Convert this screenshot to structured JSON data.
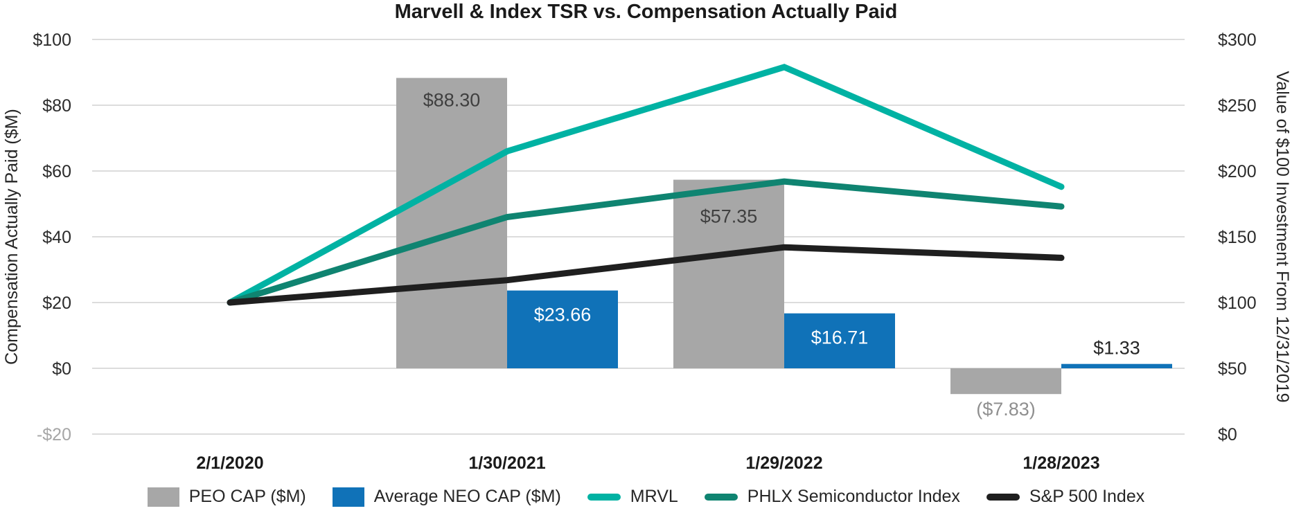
{
  "chart_data": {
    "type": "combo-bar-line",
    "title": "Marvell & Index TSR vs. Compensation Actually Paid",
    "categories": [
      "2/1/2020",
      "1/30/2021",
      "1/29/2022",
      "1/28/2023"
    ],
    "bar_series": [
      {
        "name": "PEO CAP ($M)",
        "color": "#a7a7a7",
        "label_color": "#3f3f3f",
        "negative_label_color": "#8f8f8f",
        "values": [
          null,
          88.3,
          57.35,
          -7.83
        ],
        "labels": [
          "",
          "$88.30",
          "$57.35",
          "($7.83)"
        ]
      },
      {
        "name": "Average NEO CAP ($M)",
        "color": "#1072b8",
        "label_color": "#ffffff",
        "small_label_color": "#262626",
        "values": [
          null,
          23.66,
          16.71,
          1.33
        ],
        "labels": [
          "",
          "$23.66",
          "$16.71",
          "$1.33"
        ]
      }
    ],
    "line_series": [
      {
        "name": "MRVL",
        "color": "#00b2a3",
        "values": [
          100,
          215,
          279,
          188
        ]
      },
      {
        "name": "PHLX Semiconductor Index",
        "color": "#0f8471",
        "values": [
          100,
          165,
          192,
          173
        ]
      },
      {
        "name": "S&P 500 Index",
        "color": "#1f1f1f",
        "values": [
          100,
          117,
          142,
          134
        ]
      }
    ],
    "left_axis": {
      "title": "Compensation Actually Paid ($M)",
      "ticks": [
        "$100",
        "$80",
        "$60",
        "$40",
        "$20",
        "$0",
        "-$20"
      ],
      "min": -20,
      "max": 100,
      "last_tick_color": "#a6a6a6",
      "tick_color": "#2b2b2b"
    },
    "right_axis": {
      "title": "Value of $100 Investment From 12/31/2019",
      "ticks": [
        "$300",
        "$250",
        "$200",
        "$150",
        "$100",
        "$50",
        "$0"
      ],
      "min": 0,
      "max": 300,
      "tick_color": "#2b2b2b"
    },
    "grid": true,
    "grid_color": "#dcdcdc",
    "legend_position": "bottom"
  }
}
